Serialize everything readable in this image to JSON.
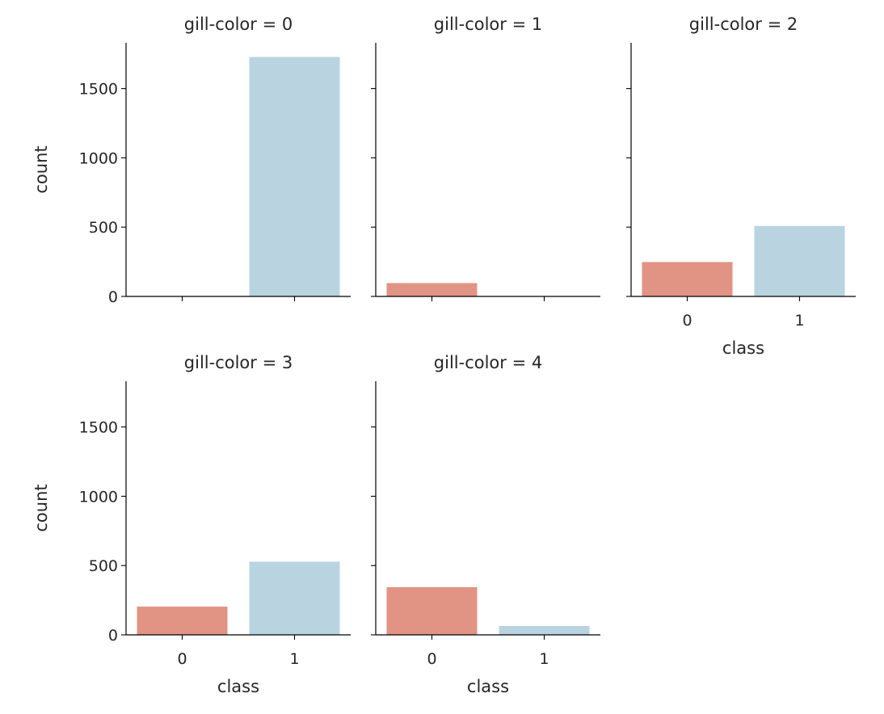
{
  "colors": {
    "class_0": "#e19384",
    "class_1": "#b9d4e0",
    "axis": "#000000",
    "text": "#262626"
  },
  "chart_data": {
    "type": "bar",
    "layout": "facet-grid",
    "facet_variable": "gill-color",
    "categories": [
      "0",
      "1"
    ],
    "xlabel": "class",
    "ylabel": "count",
    "ylim": [
      0,
      1830
    ],
    "yticks": [
      0,
      500,
      1000,
      1500
    ],
    "grid": false,
    "sharey": true,
    "panels": [
      {
        "title": "gill-color = 0",
        "values": [
          0,
          1728
        ]
      },
      {
        "title": "gill-color = 1",
        "values": [
          96,
          0
        ]
      },
      {
        "title": "gill-color = 2",
        "values": [
          248,
          508
        ]
      },
      {
        "title": "gill-color = 3",
        "values": [
          204,
          528
        ]
      },
      {
        "title": "gill-color = 4",
        "values": [
          344,
          64
        ]
      }
    ]
  }
}
